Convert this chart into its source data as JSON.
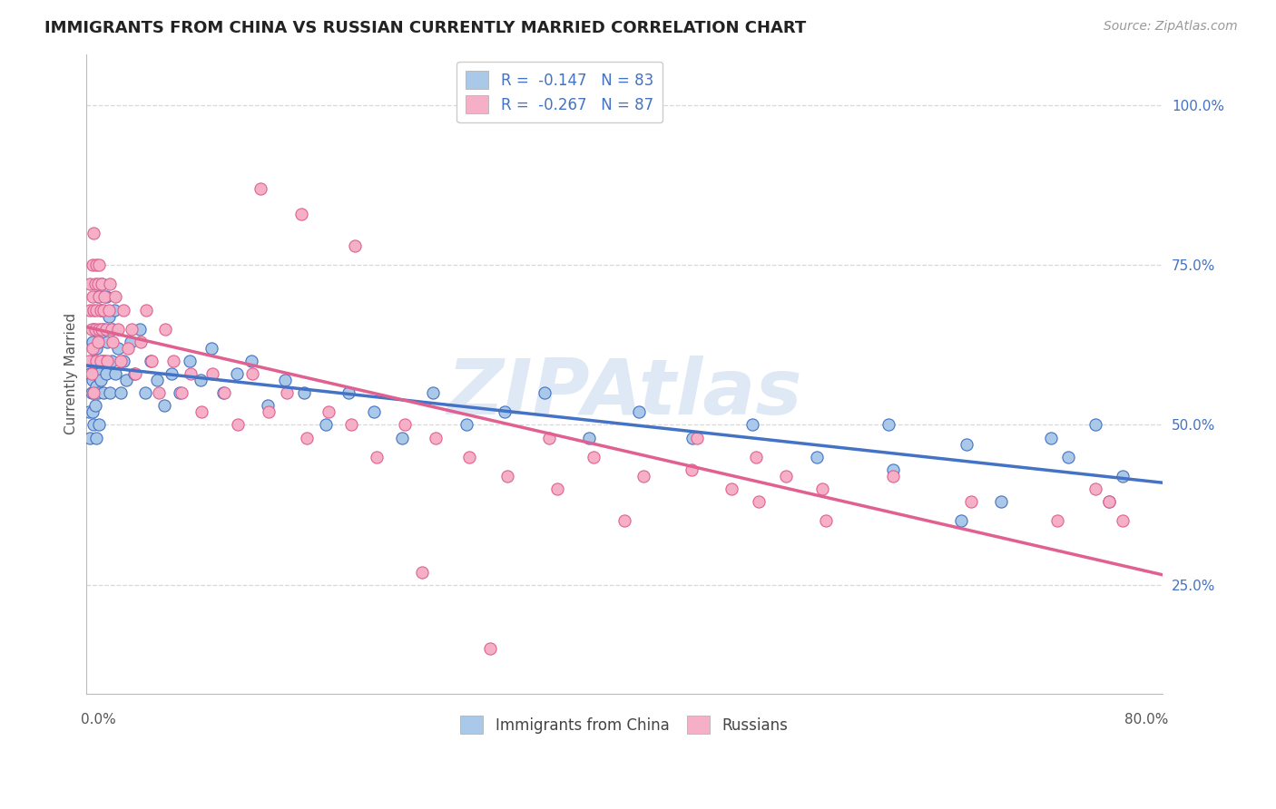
{
  "title": "IMMIGRANTS FROM CHINA VS RUSSIAN CURRENTLY MARRIED CORRELATION CHART",
  "source": "Source: ZipAtlas.com",
  "ylabel": "Currently Married",
  "legend_label1": "Immigrants from China",
  "legend_label2": "Russians",
  "r1": -0.147,
  "n1": 83,
  "r2": -0.267,
  "n2": 87,
  "color1": "#aac8e8",
  "color2": "#f5b0c8",
  "line_color1": "#4472c4",
  "line_color2": "#e06090",
  "ytick_color": "#4472c4",
  "watermark": "ZIPAtlas",
  "xlim": [
    0.0,
    0.8
  ],
  "ylim": [
    0.08,
    1.08
  ],
  "yticks": [
    0.25,
    0.5,
    0.75,
    1.0
  ],
  "ytick_labels": [
    "25.0%",
    "50.0%",
    "75.0%",
    "100.0%"
  ],
  "grid_color": "#d8d8d8",
  "background_color": "#ffffff",
  "title_fontsize": 13,
  "source_fontsize": 10,
  "axis_label_fontsize": 11,
  "tick_fontsize": 11,
  "legend_fontsize": 12,
  "china_x": [
    0.002,
    0.003,
    0.003,
    0.004,
    0.004,
    0.005,
    0.005,
    0.005,
    0.006,
    0.006,
    0.006,
    0.007,
    0.007,
    0.007,
    0.008,
    0.008,
    0.008,
    0.009,
    0.009,
    0.01,
    0.01,
    0.01,
    0.011,
    0.011,
    0.012,
    0.012,
    0.013,
    0.013,
    0.014,
    0.015,
    0.015,
    0.016,
    0.017,
    0.018,
    0.019,
    0.02,
    0.021,
    0.022,
    0.024,
    0.026,
    0.028,
    0.03,
    0.033,
    0.036,
    0.04,
    0.044,
    0.048,
    0.053,
    0.058,
    0.064,
    0.07,
    0.077,
    0.085,
    0.093,
    0.102,
    0.112,
    0.123,
    0.135,
    0.148,
    0.162,
    0.178,
    0.195,
    0.214,
    0.235,
    0.258,
    0.283,
    0.311,
    0.341,
    0.374,
    0.411,
    0.451,
    0.495,
    0.543,
    0.596,
    0.654,
    0.717,
    0.73,
    0.75,
    0.76,
    0.77,
    0.6,
    0.65,
    0.68
  ],
  "china_y": [
    0.52,
    0.48,
    0.58,
    0.55,
    0.6,
    0.52,
    0.57,
    0.63,
    0.55,
    0.5,
    0.65,
    0.58,
    0.53,
    0.6,
    0.56,
    0.62,
    0.48,
    0.55,
    0.7,
    0.58,
    0.63,
    0.5,
    0.68,
    0.57,
    0.6,
    0.72,
    0.55,
    0.65,
    0.6,
    0.58,
    0.7,
    0.63,
    0.67,
    0.55,
    0.6,
    0.65,
    0.68,
    0.58,
    0.62,
    0.55,
    0.6,
    0.57,
    0.63,
    0.58,
    0.65,
    0.55,
    0.6,
    0.57,
    0.53,
    0.58,
    0.55,
    0.6,
    0.57,
    0.62,
    0.55,
    0.58,
    0.6,
    0.53,
    0.57,
    0.55,
    0.5,
    0.55,
    0.52,
    0.48,
    0.55,
    0.5,
    0.52,
    0.55,
    0.48,
    0.52,
    0.48,
    0.5,
    0.45,
    0.5,
    0.47,
    0.48,
    0.45,
    0.5,
    0.38,
    0.42,
    0.43,
    0.35,
    0.38
  ],
  "russia_x": [
    0.002,
    0.003,
    0.003,
    0.004,
    0.004,
    0.005,
    0.005,
    0.005,
    0.006,
    0.006,
    0.006,
    0.007,
    0.007,
    0.008,
    0.008,
    0.008,
    0.009,
    0.009,
    0.01,
    0.01,
    0.01,
    0.011,
    0.011,
    0.012,
    0.012,
    0.013,
    0.014,
    0.015,
    0.016,
    0.017,
    0.018,
    0.019,
    0.02,
    0.022,
    0.024,
    0.026,
    0.028,
    0.031,
    0.034,
    0.037,
    0.041,
    0.045,
    0.049,
    0.054,
    0.059,
    0.065,
    0.071,
    0.078,
    0.086,
    0.094,
    0.103,
    0.113,
    0.124,
    0.136,
    0.149,
    0.164,
    0.18,
    0.197,
    0.216,
    0.237,
    0.26,
    0.285,
    0.313,
    0.344,
    0.377,
    0.414,
    0.454,
    0.498,
    0.547,
    0.6,
    0.658,
    0.722,
    0.75,
    0.76,
    0.77,
    0.45,
    0.48,
    0.5,
    0.52,
    0.55,
    0.13,
    0.16,
    0.2,
    0.25,
    0.3,
    0.35,
    0.4
  ],
  "russia_y": [
    0.6,
    0.68,
    0.72,
    0.65,
    0.58,
    0.75,
    0.62,
    0.7,
    0.68,
    0.8,
    0.55,
    0.72,
    0.65,
    0.75,
    0.6,
    0.68,
    0.72,
    0.63,
    0.7,
    0.65,
    0.75,
    0.68,
    0.6,
    0.72,
    0.65,
    0.68,
    0.7,
    0.65,
    0.6,
    0.68,
    0.72,
    0.65,
    0.63,
    0.7,
    0.65,
    0.6,
    0.68,
    0.62,
    0.65,
    0.58,
    0.63,
    0.68,
    0.6,
    0.55,
    0.65,
    0.6,
    0.55,
    0.58,
    0.52,
    0.58,
    0.55,
    0.5,
    0.58,
    0.52,
    0.55,
    0.48,
    0.52,
    0.5,
    0.45,
    0.5,
    0.48,
    0.45,
    0.42,
    0.48,
    0.45,
    0.42,
    0.48,
    0.45,
    0.4,
    0.42,
    0.38,
    0.35,
    0.4,
    0.38,
    0.35,
    0.43,
    0.4,
    0.38,
    0.42,
    0.35,
    0.87,
    0.83,
    0.78,
    0.27,
    0.15,
    0.4,
    0.35
  ],
  "marker_size": 90
}
